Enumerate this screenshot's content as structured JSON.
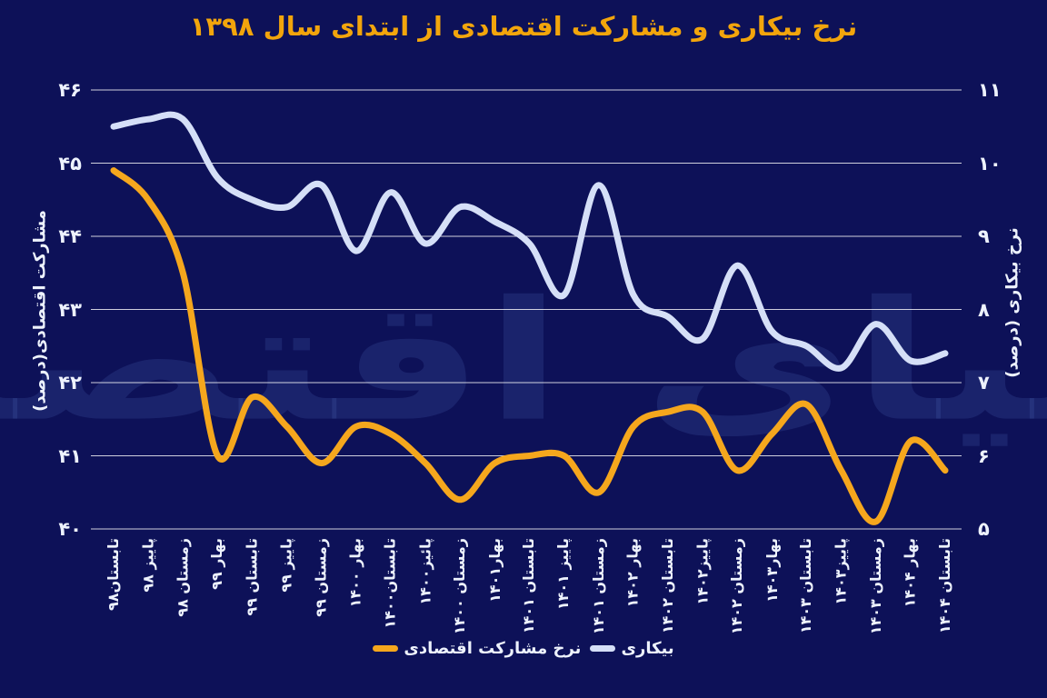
{
  "title": {
    "text": "نرخ بیکاری و مشارکت اقتصادی از ابتدای سال ۱۳۹۸"
  },
  "watermark": {
    "text": "دنیای اقتصاد"
  },
  "colors": {
    "background": "#0D1158",
    "title": "#F2A50C",
    "participation_line": "#F5A71D",
    "unemployment_line": "#D5DFF7",
    "gridline": "rgba(255,255,255,0.8)",
    "tick_text": "#EDF2FD",
    "watermark": "rgba(95,127,210,0.17)"
  },
  "axes": {
    "left_title": "مشارکت اقتصادی(درصد)",
    "right_title": "نرخ بیکاری (درصد)",
    "left_ticks": [
      "۴۶",
      "۴۵",
      "۴۴",
      "۴۳",
      "۴۲",
      "۴۱",
      "۴۰"
    ],
    "right_ticks": [
      "۱۱",
      "۱۰",
      "۹",
      "۸",
      "۷",
      "۶",
      "۵"
    ]
  },
  "legend": [
    {
      "label": "نرخ مشارکت اقتصادی",
      "color": "#F5A71D"
    },
    {
      "label": "بیکاری",
      "color": "#D5DFF7"
    }
  ],
  "chart_data": {
    "type": "line",
    "title": "نرخ بیکاری و مشارکت اقتصادی از ابتدای سال ۱۳۹۸",
    "categories": [
      "تابستان۹۸",
      "پاییز ۹۸",
      "زمستان ۹۸",
      "بهار ۹۹",
      "تابستان ۹۹",
      "پاییز ۹۹",
      "زمستان ۹۹",
      "بهار ۱۴۰۰",
      "تابستان۱۴۰۰",
      "پائیز۱۴۰۰",
      "زمستان ۱۴۰۰",
      "بهار۱۴۰۱",
      "تابستان ۱۴۰۱",
      "پاییز ۱۴۰۱",
      "زمستان ۱۴۰۱",
      "بهار ۱۴۰۲",
      "تابستان ۱۴۰۲",
      "پاییز۱۴۰۲",
      "زمستان ۱۴۰۲",
      "بهار۱۴۰۳",
      "تابستان ۱۴۰۳",
      "پاییز۱۴۰۳",
      "زمستان ۱۴۰۳",
      "بهار ۱۴۰۴",
      "تابستان ۱۴۰۴"
    ],
    "series": [
      {
        "name": "نرخ مشارکت اقتصادی",
        "axis": "left",
        "color": "#F5A71D",
        "values": [
          44.9,
          44.5,
          43.5,
          41.0,
          41.8,
          41.4,
          40.9,
          41.4,
          41.3,
          40.9,
          40.4,
          40.9,
          41.0,
          41.0,
          40.5,
          41.4,
          41.6,
          41.6,
          40.8,
          41.3,
          41.7,
          40.8,
          40.1,
          41.2,
          40.8
        ]
      },
      {
        "name": "بیکاری",
        "axis": "right",
        "color": "#D5DFF7",
        "values": [
          10.5,
          10.6,
          10.6,
          9.8,
          9.5,
          9.4,
          9.7,
          8.8,
          9.6,
          8.9,
          9.4,
          9.2,
          8.9,
          8.2,
          9.7,
          8.2,
          7.9,
          7.6,
          8.6,
          7.7,
          7.5,
          7.2,
          7.8,
          7.3,
          7.4
        ]
      }
    ],
    "y_left": {
      "label": "مشارکت اقتصادی(درصد)",
      "min": 40,
      "max": 46,
      "step": 1
    },
    "y_right": {
      "label": "نرخ بیکاری (درصد)",
      "min": 5,
      "max": 11,
      "step": 1
    },
    "grid": true,
    "legend_position": "bottom",
    "smoothing": "spline"
  }
}
